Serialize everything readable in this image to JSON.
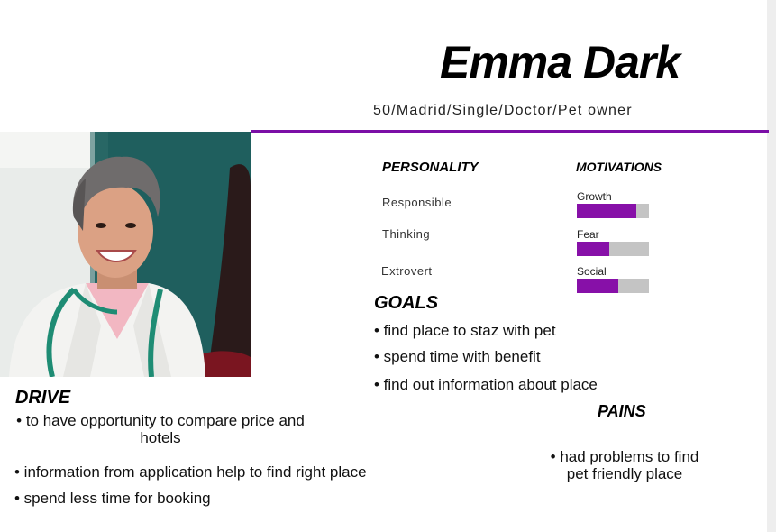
{
  "persona": {
    "name": "Emma Dark",
    "subtitle": "50/Madrid/Single/Doctor/Pet owner",
    "accent_color": "#7b0fa6",
    "photo": "portrait of smiling female doctor with stethoscope"
  },
  "personality": {
    "title": "PERSONALITY",
    "traits": [
      "Responsible",
      "Thinking",
      "Extrovert"
    ]
  },
  "motivations": {
    "title": "MOTIVATIONS",
    "items": [
      {
        "label": "Growth",
        "level": 0.82
      },
      {
        "label": "Fear",
        "level": 0.45
      },
      {
        "label": "Social",
        "level": 0.57
      }
    ],
    "fill_color": "#8710a8",
    "track_color": "#c4c4c4"
  },
  "goals": {
    "title": "GOALS",
    "items": [
      "• find place to staz with pet",
      "• spend time with benefit",
      "• find out information about place"
    ]
  },
  "drive": {
    "title": "DRIVE",
    "items": [
      "• to have opportunity to compare price and hotels",
      "• information from application help to find right place",
      "• spend less time for booking"
    ]
  },
  "pains": {
    "title": "PAINS",
    "items": [
      "• had problems to find pet friendly place"
    ]
  }
}
